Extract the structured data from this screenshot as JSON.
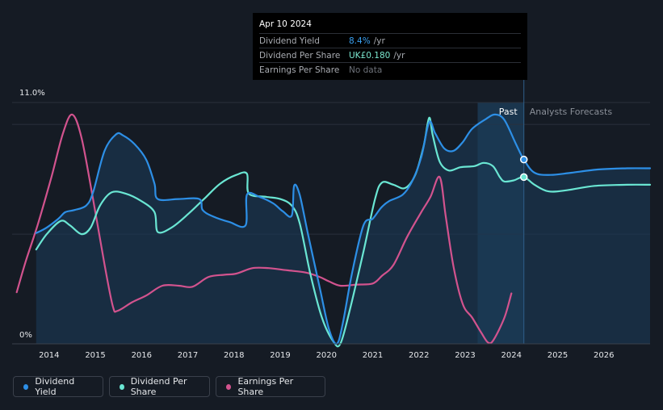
{
  "tooltip": {
    "date": "Apr 10 2024",
    "rows": [
      {
        "label": "Dividend Yield",
        "value": "8.4%",
        "unit": "/yr",
        "color": "#3aa0f0"
      },
      {
        "label": "Dividend Per Share",
        "value": "UK£0.180",
        "unit": "/yr",
        "color": "#7be8d0"
      },
      {
        "label": "Earnings Per Share",
        "value": "No data",
        "unit": "",
        "color": "#6e727a"
      }
    ]
  },
  "regions": {
    "past": "Past",
    "forecast": "Analysts Forecasts"
  },
  "legend": [
    {
      "label": "Dividend Yield",
      "color": "#2d8fe6"
    },
    {
      "label": "Dividend Per Share",
      "color": "#6ae6d3"
    },
    {
      "label": "Earnings Per Share",
      "color": "#d2538e"
    }
  ],
  "chart_data": {
    "type": "line",
    "title": "",
    "xlabel": "",
    "ylabel": "",
    "ylim": [
      0,
      11
    ],
    "xlim": [
      2013.2,
      2027.0
    ],
    "y_tick_labels": [
      {
        "value": 11,
        "label": "11.0%"
      },
      {
        "value": 0,
        "label": "0%"
      }
    ],
    "x_tick_labels": [
      {
        "value": 2014,
        "label": "2014"
      },
      {
        "value": 2015,
        "label": "2015"
      },
      {
        "value": 2016,
        "label": "2016"
      },
      {
        "value": 2017,
        "label": "2017"
      },
      {
        "value": 2018,
        "label": "2018"
      },
      {
        "value": 2019,
        "label": "2019"
      },
      {
        "value": 2020,
        "label": "2020"
      },
      {
        "value": 2021,
        "label": "2021"
      },
      {
        "value": 2022,
        "label": "2022"
      },
      {
        "value": 2023,
        "label": "2023"
      },
      {
        "value": 2024,
        "label": "2024"
      },
      {
        "value": 2025,
        "label": "2025"
      },
      {
        "value": 2026,
        "label": "2026"
      }
    ],
    "gridlines": [
      11,
      10,
      5
    ],
    "past_range": [
      2013.72,
      2024.27
    ],
    "forecast_shade_start": 2023.27,
    "forecast_start": 2024.27,
    "series": [
      {
        "name": "Dividend Yield",
        "color": "#2d8fe6",
        "points": [
          [
            2013.72,
            5.05
          ],
          [
            2013.95,
            5.3
          ],
          [
            2014.2,
            5.7
          ],
          [
            2014.35,
            6.0
          ],
          [
            2014.55,
            6.1
          ],
          [
            2014.8,
            6.3
          ],
          [
            2014.95,
            6.9
          ],
          [
            2015.2,
            8.8
          ],
          [
            2015.45,
            9.55
          ],
          [
            2015.6,
            9.5
          ],
          [
            2015.85,
            9.1
          ],
          [
            2016.1,
            8.4
          ],
          [
            2016.28,
            7.3
          ],
          [
            2016.35,
            6.6
          ],
          [
            2016.8,
            6.6
          ],
          [
            2017.25,
            6.6
          ],
          [
            2017.32,
            6.1
          ],
          [
            2017.55,
            5.8
          ],
          [
            2017.9,
            5.55
          ],
          [
            2018.25,
            5.4
          ],
          [
            2018.28,
            6.8
          ],
          [
            2018.55,
            6.7
          ],
          [
            2018.85,
            6.4
          ],
          [
            2019.05,
            6.05
          ],
          [
            2019.25,
            5.85
          ],
          [
            2019.3,
            7.2
          ],
          [
            2019.42,
            6.8
          ],
          [
            2019.6,
            5.0
          ],
          [
            2019.85,
            2.6
          ],
          [
            2020.05,
            0.7
          ],
          [
            2020.22,
            0.0
          ],
          [
            2020.35,
            0.9
          ],
          [
            2020.55,
            3.2
          ],
          [
            2020.8,
            5.4
          ],
          [
            2021.0,
            5.7
          ],
          [
            2021.18,
            6.2
          ],
          [
            2021.35,
            6.5
          ],
          [
            2021.65,
            6.8
          ],
          [
            2021.85,
            7.4
          ],
          [
            2022.05,
            8.5
          ],
          [
            2022.22,
            10.1
          ],
          [
            2022.35,
            9.6
          ],
          [
            2022.55,
            8.9
          ],
          [
            2022.75,
            8.8
          ],
          [
            2022.95,
            9.2
          ],
          [
            2023.15,
            9.8
          ],
          [
            2023.45,
            10.25
          ],
          [
            2023.65,
            10.45
          ],
          [
            2023.85,
            10.2
          ],
          [
            2024.1,
            9.1
          ],
          [
            2024.27,
            8.4
          ],
          [
            2024.5,
            7.8
          ],
          [
            2024.85,
            7.7
          ],
          [
            2025.3,
            7.8
          ],
          [
            2025.9,
            7.95
          ],
          [
            2026.5,
            8.0
          ],
          [
            2027.0,
            8.0
          ]
        ]
      },
      {
        "name": "Dividend Per Share",
        "color": "#6ae6d3",
        "points": [
          [
            2013.72,
            4.3
          ],
          [
            2013.95,
            5.0
          ],
          [
            2014.25,
            5.6
          ],
          [
            2014.45,
            5.4
          ],
          [
            2014.7,
            5.0
          ],
          [
            2014.9,
            5.3
          ],
          [
            2015.1,
            6.3
          ],
          [
            2015.35,
            6.9
          ],
          [
            2015.65,
            6.85
          ],
          [
            2016.0,
            6.5
          ],
          [
            2016.28,
            6.0
          ],
          [
            2016.35,
            5.1
          ],
          [
            2016.65,
            5.3
          ],
          [
            2017.0,
            5.9
          ],
          [
            2017.35,
            6.6
          ],
          [
            2017.7,
            7.3
          ],
          [
            2018.05,
            7.7
          ],
          [
            2018.28,
            7.75
          ],
          [
            2018.32,
            6.85
          ],
          [
            2018.7,
            6.7
          ],
          [
            2019.0,
            6.6
          ],
          [
            2019.25,
            6.3
          ],
          [
            2019.42,
            5.5
          ],
          [
            2019.65,
            3.2
          ],
          [
            2019.9,
            1.2
          ],
          [
            2020.15,
            0.1
          ],
          [
            2020.3,
            0.0
          ],
          [
            2020.5,
            1.5
          ],
          [
            2020.8,
            4.2
          ],
          [
            2021.05,
            6.6
          ],
          [
            2021.2,
            7.35
          ],
          [
            2021.45,
            7.25
          ],
          [
            2021.7,
            7.1
          ],
          [
            2021.92,
            7.7
          ],
          [
            2022.1,
            9.0
          ],
          [
            2022.22,
            10.3
          ],
          [
            2022.3,
            9.5
          ],
          [
            2022.45,
            8.3
          ],
          [
            2022.65,
            7.9
          ],
          [
            2022.9,
            8.05
          ],
          [
            2023.2,
            8.1
          ],
          [
            2023.4,
            8.25
          ],
          [
            2023.6,
            8.1
          ],
          [
            2023.75,
            7.6
          ],
          [
            2023.85,
            7.4
          ],
          [
            2024.05,
            7.45
          ],
          [
            2024.27,
            7.6
          ],
          [
            2024.5,
            7.25
          ],
          [
            2024.8,
            6.95
          ],
          [
            2025.2,
            7.0
          ],
          [
            2025.8,
            7.2
          ],
          [
            2026.5,
            7.25
          ],
          [
            2027.0,
            7.25
          ]
        ]
      },
      {
        "name": "Earnings Per Share",
        "color": "#d2538e",
        "points": [
          [
            2013.3,
            2.35
          ],
          [
            2013.5,
            3.8
          ],
          [
            2013.75,
            5.4
          ],
          [
            2014.05,
            7.6
          ],
          [
            2014.3,
            9.6
          ],
          [
            2014.5,
            10.45
          ],
          [
            2014.7,
            9.4
          ],
          [
            2014.95,
            6.6
          ],
          [
            2015.2,
            3.6
          ],
          [
            2015.38,
            1.7
          ],
          [
            2015.48,
            1.5
          ],
          [
            2015.8,
            1.9
          ],
          [
            2016.1,
            2.2
          ],
          [
            2016.45,
            2.65
          ],
          [
            2016.8,
            2.65
          ],
          [
            2017.1,
            2.6
          ],
          [
            2017.45,
            3.05
          ],
          [
            2017.8,
            3.15
          ],
          [
            2018.05,
            3.2
          ],
          [
            2018.4,
            3.45
          ],
          [
            2018.75,
            3.45
          ],
          [
            2019.15,
            3.35
          ],
          [
            2019.55,
            3.25
          ],
          [
            2019.85,
            3.05
          ],
          [
            2020.05,
            2.85
          ],
          [
            2020.3,
            2.65
          ],
          [
            2020.65,
            2.7
          ],
          [
            2021.0,
            2.75
          ],
          [
            2021.2,
            3.1
          ],
          [
            2021.45,
            3.6
          ],
          [
            2021.75,
            4.9
          ],
          [
            2022.05,
            6.0
          ],
          [
            2022.25,
            6.7
          ],
          [
            2022.45,
            7.6
          ],
          [
            2022.58,
            5.8
          ],
          [
            2022.75,
            3.5
          ],
          [
            2022.95,
            1.8
          ],
          [
            2023.15,
            1.2
          ],
          [
            2023.35,
            0.5
          ],
          [
            2023.5,
            0.05
          ],
          [
            2023.62,
            0.2
          ],
          [
            2023.85,
            1.2
          ],
          [
            2024.0,
            2.3
          ]
        ]
      }
    ],
    "markers": [
      {
        "series": "Dividend Yield",
        "x": 2024.27,
        "y": 8.4
      },
      {
        "series": "Dividend Per Share",
        "x": 2024.27,
        "y": 7.6
      }
    ]
  }
}
